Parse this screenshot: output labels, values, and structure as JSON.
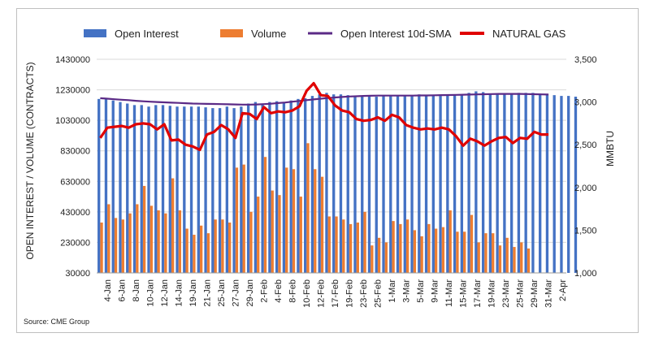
{
  "chart_data": {
    "type": "bar",
    "title": "",
    "ylabel": "OPEN INTEREST / VOLUME (CONTRACTS)",
    "y2label": "MMBTU",
    "ylim": [
      30000,
      1430000
    ],
    "y_ticks": [
      "30000",
      "230000",
      "430000",
      "630000",
      "830000",
      "1030000",
      "1230000",
      "1430000"
    ],
    "y_tick_values": [
      30000,
      230000,
      430000,
      630000,
      830000,
      1030000,
      1230000,
      1430000
    ],
    "y2lim": [
      1000,
      3500
    ],
    "y2_ticks": [
      "1,000",
      "1,500",
      "2,000",
      "2,500",
      "3,000",
      "3,500"
    ],
    "y2_tick_values": [
      1000,
      1500,
      2000,
      2500,
      3000,
      3500
    ],
    "x_tick_labels": [
      "4-Jan",
      "6-Jan",
      "8-Jan",
      "10-Jan",
      "12-Jan",
      "14-Jan",
      "19-Jan",
      "21-Jan",
      "25-Jan",
      "27-Jan",
      "29-Jan",
      "2-Feb",
      "4-Feb",
      "8-Feb",
      "10-Feb",
      "12-Feb",
      "17-Feb",
      "19-Feb",
      "23-Feb",
      "25-Feb",
      "1-Mar",
      "3-Mar",
      "5-Mar",
      "9-Mar",
      "11-Mar",
      "15-Mar",
      "17-Mar",
      "19-Mar",
      "23-Mar",
      "25-Mar",
      "29-Mar",
      "31-Mar",
      "2-Apr"
    ],
    "legend_position": "top",
    "source": "Source: CME Group",
    "series": [
      {
        "name": "Open Interest",
        "type": "bar",
        "color": "#4472c4",
        "values": [
          1170000,
          1170000,
          1160000,
          1150000,
          1140000,
          1130000,
          1130000,
          1120000,
          1130000,
          1130000,
          1125000,
          1120000,
          1120000,
          1120000,
          1120000,
          1115000,
          1110000,
          1110000,
          1120000,
          1110000,
          1120000,
          1140000,
          1150000,
          1140000,
          1150000,
          1155000,
          1150000,
          1160000,
          1170000,
          1175000,
          1190000,
          1200000,
          1210000,
          1200000,
          1200000,
          1195000,
          1190000,
          1190000,
          1185000,
          1185000,
          1190000,
          1195000,
          1195000,
          1195000,
          1190000,
          1200000,
          1195000,
          1195000,
          1190000,
          1195000,
          1200000,
          1200000,
          1210000,
          1220000,
          1215000,
          1205000,
          1200000,
          1200000,
          1205000,
          1210000,
          1210000,
          1210000,
          1205000,
          1200000,
          1195000,
          1190000,
          1190000,
          1185000
        ]
      },
      {
        "name": "Volume",
        "type": "bar",
        "color": "#ed7d31",
        "values": [
          360000,
          480000,
          390000,
          380000,
          420000,
          480000,
          600000,
          470000,
          440000,
          420000,
          650000,
          440000,
          320000,
          280000,
          340000,
          290000,
          380000,
          380000,
          360000,
          720000,
          740000,
          430000,
          530000,
          790000,
          570000,
          540000,
          720000,
          710000,
          530000,
          880000,
          710000,
          660000,
          400000,
          400000,
          380000,
          350000,
          360000,
          430000,
          210000,
          260000,
          230000,
          370000,
          350000,
          380000,
          310000,
          270000,
          350000,
          320000,
          330000,
          440000,
          300000,
          300000,
          410000,
          230000,
          290000,
          290000,
          210000,
          260000,
          200000,
          230000,
          190000
        ]
      },
      {
        "name": "Open Interest 10d-SMA",
        "type": "line",
        "color": "#5b2a86",
        "values": [
          1175000,
          1172000,
          1168000,
          1165000,
          1162000,
          1158000,
          1155000,
          1152000,
          1150000,
          1148000,
          1146000,
          1144000,
          1142000,
          1140000,
          1139000,
          1138000,
          1137000,
          1136000,
          1135000,
          1134000,
          1133000,
          1133000,
          1134000,
          1136000,
          1139000,
          1143000,
          1147000,
          1152000,
          1157000,
          1162000,
          1167000,
          1172000,
          1176000,
          1180000,
          1183000,
          1186000,
          1188000,
          1190000,
          1191000,
          1192000,
          1192000,
          1192000,
          1192000,
          1192000,
          1192000,
          1193000,
          1193000,
          1194000,
          1195000,
          1196000,
          1197000,
          1198000,
          1199000,
          1200000,
          1201000,
          1202000,
          1203000,
          1203000,
          1203000,
          1203000,
          1202000,
          1201000,
          1200000,
          1199000
        ]
      },
      {
        "name": "NATURAL GAS",
        "type": "line",
        "color": "#e00000",
        "axis": "right",
        "values": [
          2580,
          2700,
          2710,
          2720,
          2700,
          2740,
          2750,
          2740,
          2680,
          2740,
          2550,
          2560,
          2500,
          2480,
          2440,
          2620,
          2650,
          2730,
          2680,
          2580,
          2870,
          2860,
          2800,
          2940,
          2870,
          2890,
          2880,
          2900,
          2950,
          3130,
          3220,
          3080,
          3070,
          2960,
          2900,
          2880,
          2800,
          2780,
          2790,
          2820,
          2780,
          2850,
          2820,
          2730,
          2700,
          2680,
          2690,
          2680,
          2700,
          2680,
          2600,
          2490,
          2570,
          2540,
          2490,
          2540,
          2580,
          2590,
          2520,
          2580,
          2570,
          2650,
          2620,
          2620
        ]
      }
    ]
  }
}
